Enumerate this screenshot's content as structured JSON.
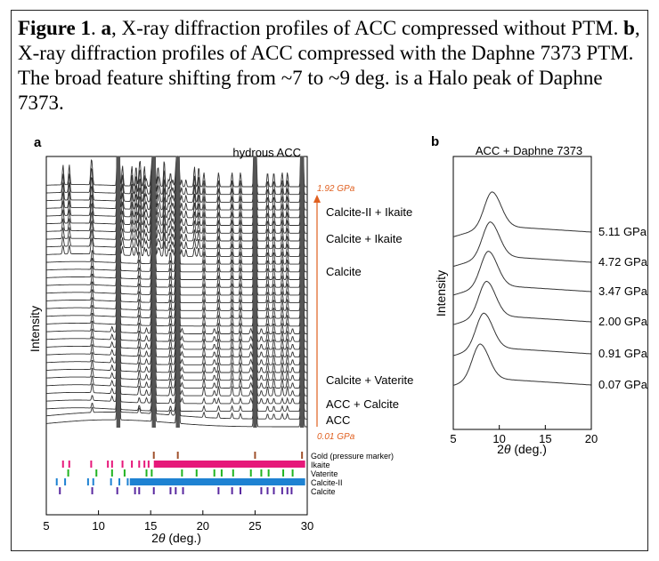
{
  "caption": {
    "fig_label": "Figure 1",
    "a_label": "a",
    "a_text": ", X-ray diffraction profiles of ACC compressed without PTM. ",
    "b_label": "b",
    "b_text": ", X-ray diffraction profiles of ACC compressed with the Daphne 7373 PTM. The broad feature shifting from ~7 to ~9 deg. is a Halo peak of Daphne 7373."
  },
  "chart_data": [
    {
      "type": "line",
      "panel_label": "a",
      "title": "hydrous ACC",
      "xlabel": "2θ (deg.)",
      "xlabel_theta": "θ",
      "xlabel_unit": "(deg.)",
      "ylabel": "Intensity",
      "xlim": [
        5,
        30
      ],
      "xticks": [
        5,
        10,
        15,
        20,
        25,
        30
      ],
      "grid": false,
      "n_profiles": 32,
      "pressure_range": {
        "low": "0.01 GPa",
        "high": "1.92 GPa"
      },
      "stacking": "bottom-to-top with increasing pressure",
      "phase_annotations": [
        "Calcite-II + Ikaite",
        "Calcite + Ikaite",
        "Calcite",
        "Calcite + Vaterite",
        "ACC + Calcite",
        "ACC"
      ],
      "strong_peaks_deg": [
        11.9,
        15.3,
        17.6,
        25.0,
        29.5
      ],
      "reference_markers": [
        {
          "name": "Gold (pressure marker)",
          "color": "#a0522d",
          "positions": [
            15.3,
            17.6,
            25.0,
            29.5
          ]
        },
        {
          "name": "Ikaite",
          "color": "#e6197a",
          "positions": [
            6.6,
            7.2,
            9.3,
            10.9,
            11.3,
            12.3,
            13.2,
            13.9,
            14.4,
            14.8,
            15.5,
            16.0,
            16.5,
            17.0,
            17.4,
            17.9,
            18.3,
            18.8,
            19.3,
            19.8,
            20.3,
            20.9,
            21.4,
            22.0,
            22.6,
            23.2,
            23.8,
            24.3,
            24.9,
            25.5,
            26.1,
            26.7,
            27.3,
            27.9,
            28.5,
            29.1,
            29.6
          ]
        },
        {
          "name": "Vaterite",
          "color": "#22b422",
          "positions": [
            7.1,
            9.8,
            11.3,
            12.5,
            14.6,
            15.1,
            18.0,
            19.4,
            21.1,
            21.8,
            22.9,
            24.6,
            25.6,
            26.3,
            27.7,
            28.6
          ]
        },
        {
          "name": "Calcite-II",
          "color": "#1e82d2",
          "positions": [
            6.0,
            6.8,
            9.0,
            9.5,
            11.2,
            12.0,
            12.8,
            13.6,
            14.1,
            14.7,
            15.4,
            16.1,
            16.7,
            17.2,
            17.8,
            18.4,
            19.1,
            19.7,
            20.3,
            20.8,
            21.5,
            22.3,
            22.9,
            23.5,
            24.2,
            24.8,
            25.3,
            25.9,
            26.5,
            27.1,
            27.7,
            28.3,
            28.9,
            29.5
          ]
        },
        {
          "name": "Calcite",
          "color": "#5a2aa0",
          "positions": [
            6.3,
            9.4,
            11.8,
            13.5,
            13.9,
            15.3,
            16.9,
            17.4,
            18.1,
            21.5,
            22.8,
            23.6,
            25.6,
            26.2,
            26.8,
            27.6,
            28.1,
            28.5
          ]
        }
      ]
    },
    {
      "type": "line",
      "panel_label": "b",
      "title": "ACC + Daphne 7373",
      "xlabel": "2θ (deg.)",
      "xlabel_theta": "θ",
      "xlabel_unit": "(deg.)",
      "ylabel": "Intensity",
      "xlim": [
        5,
        20
      ],
      "xticks": [
        5,
        10,
        15,
        20
      ],
      "grid": false,
      "series": [
        {
          "name": "0.07 GPa",
          "peak_deg": 7.9
        },
        {
          "name": "0.91 GPa",
          "peak_deg": 8.3
        },
        {
          "name": "2.00 GPa",
          "peak_deg": 8.6
        },
        {
          "name": "3.47 GPa",
          "peak_deg": 8.8
        },
        {
          "name": "4.72 GPa",
          "peak_deg": 9.0
        },
        {
          "name": "5.11 GPa",
          "peak_deg": 9.2
        }
      ]
    }
  ],
  "colors": {
    "pressure_arrow": "#e06020",
    "profile_line": "#333333",
    "strong_peak_fill": "#555555"
  }
}
